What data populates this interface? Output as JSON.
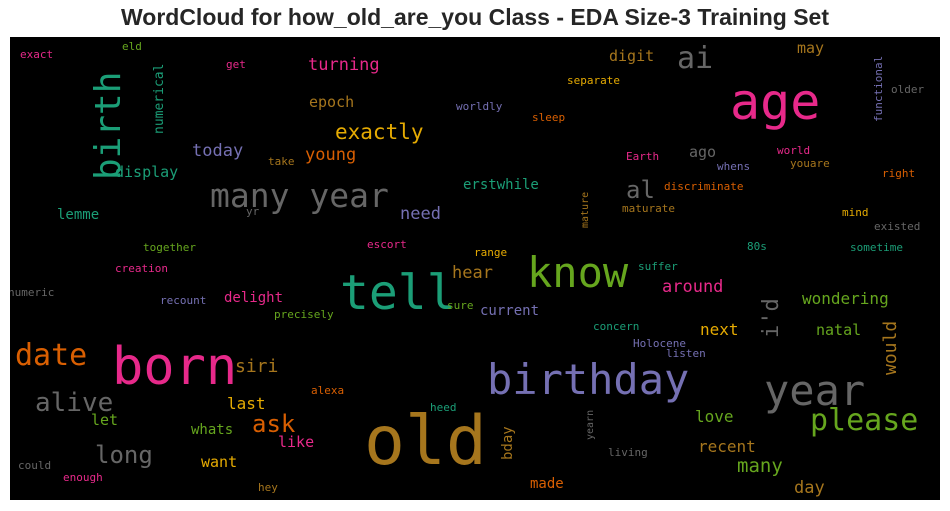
{
  "chart_data": {
    "type": "wordcloud",
    "title": "WordCloud for how_old_are_you Class - EDA Size-3 Training Set",
    "words": [
      {
        "text": "old",
        "size": 68,
        "color": "#a6761d"
      },
      {
        "text": "born",
        "size": 52,
        "color": "#e7298a"
      },
      {
        "text": "tell",
        "size": 48,
        "color": "#1b9e77"
      },
      {
        "text": "age",
        "size": 50,
        "color": "#e7298a"
      },
      {
        "text": "birthday",
        "size": 42,
        "color": "#7570b3"
      },
      {
        "text": "year",
        "size": 42,
        "color": "#666666"
      },
      {
        "text": "know",
        "size": 42,
        "color": "#66a61e"
      },
      {
        "text": "birth",
        "size": 36,
        "color": "#1b9e77",
        "rotated": true
      },
      {
        "text": "many year",
        "size": 33,
        "color": "#666666"
      },
      {
        "text": "date",
        "size": 30,
        "color": "#d95f02"
      },
      {
        "text": "please",
        "size": 30,
        "color": "#66a61e"
      },
      {
        "text": "ai",
        "size": 30,
        "color": "#666666"
      },
      {
        "text": "alive",
        "size": 26,
        "color": "#666666"
      },
      {
        "text": "long",
        "size": 24,
        "color": "#666666"
      },
      {
        "text": "al",
        "size": 24,
        "color": "#666666"
      },
      {
        "text": "ask",
        "size": 24,
        "color": "#d95f02"
      },
      {
        "text": "i'd",
        "size": 22,
        "color": "#666666",
        "rotated": true
      },
      {
        "text": "exactly",
        "size": 21,
        "color": "#e6ab02"
      },
      {
        "text": "siri",
        "size": 18,
        "color": "#a6761d"
      },
      {
        "text": "would",
        "size": 18,
        "color": "#a6761d",
        "rotated": true
      },
      {
        "text": "many",
        "size": 19,
        "color": "#66a61e"
      },
      {
        "text": "young",
        "size": 17,
        "color": "#d95f02"
      },
      {
        "text": "turning",
        "size": 17,
        "color": "#e7298a"
      },
      {
        "text": "today",
        "size": 17,
        "color": "#7570b3"
      },
      {
        "text": "need",
        "size": 17,
        "color": "#7570b3"
      },
      {
        "text": "hear",
        "size": 17,
        "color": "#a6761d"
      },
      {
        "text": "around",
        "size": 17,
        "color": "#e7298a"
      },
      {
        "text": "wondering",
        "size": 16,
        "color": "#66a61e"
      },
      {
        "text": "last",
        "size": 16,
        "color": "#e6ab02"
      },
      {
        "text": "love",
        "size": 16,
        "color": "#66a61e"
      },
      {
        "text": "recent",
        "size": 16,
        "color": "#a6761d"
      },
      {
        "text": "day",
        "size": 17,
        "color": "#a6761d"
      },
      {
        "text": "next",
        "size": 16,
        "color": "#e6ab02"
      },
      {
        "text": "natal",
        "size": 15,
        "color": "#66a61e"
      },
      {
        "text": "digit",
        "size": 15,
        "color": "#a6761d"
      },
      {
        "text": "may",
        "size": 15,
        "color": "#a6761d"
      },
      {
        "text": "ago",
        "size": 15,
        "color": "#666666"
      },
      {
        "text": "epoch",
        "size": 15,
        "color": "#a6761d"
      },
      {
        "text": "display",
        "size": 15,
        "color": "#1b9e77"
      },
      {
        "text": "lemme",
        "size": 14,
        "color": "#1b9e77"
      },
      {
        "text": "delight",
        "size": 14,
        "color": "#e7298a"
      },
      {
        "text": "current",
        "size": 14,
        "color": "#7570b3"
      },
      {
        "text": "erstwhile",
        "size": 14,
        "color": "#1b9e77"
      },
      {
        "text": "let",
        "size": 15,
        "color": "#66a61e"
      },
      {
        "text": "like",
        "size": 15,
        "color": "#e7298a"
      },
      {
        "text": "whats",
        "size": 14,
        "color": "#66a61e"
      },
      {
        "text": "want",
        "size": 15,
        "color": "#e6ab02"
      },
      {
        "text": "made",
        "size": 14,
        "color": "#d95f02"
      },
      {
        "text": "bday",
        "size": 14,
        "color": "#a6761d",
        "rotated": true
      },
      {
        "text": "numerical",
        "size": 13,
        "color": "#1b9e77",
        "rotated": true
      },
      {
        "text": "discriminate",
        "size": 11,
        "color": "#d95f02"
      },
      {
        "text": "maturate",
        "size": 11,
        "color": "#a6761d"
      },
      {
        "text": "separate",
        "size": 11,
        "color": "#e6ab02"
      },
      {
        "text": "sleep",
        "size": 11,
        "color": "#d95f02"
      },
      {
        "text": "worldly",
        "size": 11,
        "color": "#7570b3"
      },
      {
        "text": "functional",
        "size": 11,
        "color": "#7570b3",
        "rotated": true
      },
      {
        "text": "older",
        "size": 11,
        "color": "#666666"
      },
      {
        "text": "world",
        "size": 11,
        "color": "#e7298a"
      },
      {
        "text": "youare",
        "size": 11,
        "color": "#a6761d"
      },
      {
        "text": "right",
        "size": 11,
        "color": "#d95f02"
      },
      {
        "text": "whens",
        "size": 11,
        "color": "#7570b3"
      },
      {
        "text": "Earth",
        "size": 11,
        "color": "#e7298a"
      },
      {
        "text": "mind",
        "size": 11,
        "color": "#e6ab02"
      },
      {
        "text": "existed",
        "size": 11,
        "color": "#666666"
      },
      {
        "text": "sometime",
        "size": 11,
        "color": "#1b9e77"
      },
      {
        "text": "80s",
        "size": 11,
        "color": "#1b9e77"
      },
      {
        "text": "mature",
        "size": 10,
        "color": "#a6761d",
        "rotated": true
      },
      {
        "text": "range",
        "size": 11,
        "color": "#e6ab02"
      },
      {
        "text": "suffer",
        "size": 11,
        "color": "#1b9e77"
      },
      {
        "text": "sure",
        "size": 11,
        "color": "#66a61e"
      },
      {
        "text": "precisely",
        "size": 11,
        "color": "#66a61e"
      },
      {
        "text": "concern",
        "size": 11,
        "color": "#1b9e77"
      },
      {
        "text": "Holocene",
        "size": 11,
        "color": "#7570b3"
      },
      {
        "text": "listen",
        "size": 11,
        "color": "#7570b3"
      },
      {
        "text": "alexa",
        "size": 11,
        "color": "#d95f02"
      },
      {
        "text": "heed",
        "size": 11,
        "color": "#1b9e77"
      },
      {
        "text": "yearn",
        "size": 10,
        "color": "#666666",
        "rotated": true
      },
      {
        "text": "living",
        "size": 11,
        "color": "#666666"
      },
      {
        "text": "hey",
        "size": 11,
        "color": "#a6761d"
      },
      {
        "text": "enough",
        "size": 11,
        "color": "#e7298a"
      },
      {
        "text": "could",
        "size": 11,
        "color": "#666666"
      },
      {
        "text": "numeric",
        "size": 11,
        "color": "#666666"
      },
      {
        "text": "creation",
        "size": 11,
        "color": "#e7298a"
      },
      {
        "text": "together",
        "size": 11,
        "color": "#66a61e"
      },
      {
        "text": "recount",
        "size": 11,
        "color": "#7570b3"
      },
      {
        "text": "escort",
        "size": 11,
        "color": "#e7298a"
      },
      {
        "text": "yr",
        "size": 11,
        "color": "#666666"
      },
      {
        "text": "take",
        "size": 11,
        "color": "#a6761d"
      },
      {
        "text": "exact",
        "size": 11,
        "color": "#e7298a"
      },
      {
        "text": "eld",
        "size": 11,
        "color": "#66a61e"
      },
      {
        "text": "get",
        "size": 11,
        "color": "#e7298a"
      }
    ]
  }
}
